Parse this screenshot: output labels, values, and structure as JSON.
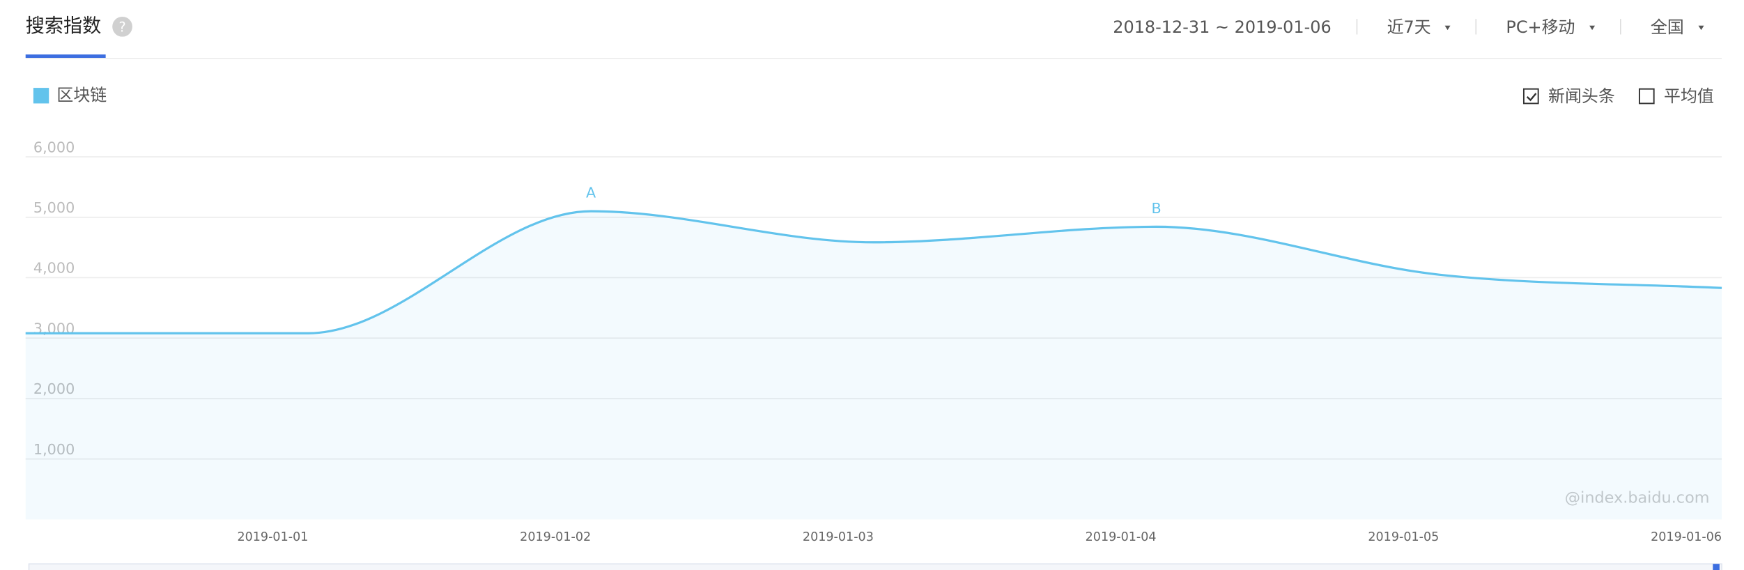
{
  "header": {
    "title": "搜索指数",
    "help": "?"
  },
  "filters": {
    "date_range": "2018-12-31 ~ 2019-01-06",
    "period": "近7天",
    "device": "PC+移动",
    "region": "全国"
  },
  "options": [
    {
      "label": "新闻头条",
      "checked": true
    },
    {
      "label": "平均值",
      "checked": false
    }
  ],
  "watermark": "@index.baidu.com",
  "chart_data": {
    "type": "area",
    "categories": [
      null,
      "2019-01-01",
      "2019-01-02",
      "2019-01-03",
      "2019-01-04",
      "2019-01-05",
      "2019-01-06"
    ],
    "series": [
      {
        "name": "区块链",
        "color": "#62c3ec",
        "values": [
          3080,
          3080,
          5100,
          4585,
          4843,
          4050,
          3830
        ]
      }
    ],
    "ylim": [
      0,
      6000
    ],
    "yticks": [
      {
        "value": 1000,
        "label": "1,000"
      },
      {
        "value": 2000,
        "label": "2,000"
      },
      {
        "value": 3000,
        "label": "3,000"
      },
      {
        "value": 4000,
        "label": "4,000"
      },
      {
        "value": 5000,
        "label": "5,000"
      },
      {
        "value": 6000,
        "label": "6,000"
      }
    ],
    "grid": true,
    "annotations": [
      {
        "label": "A",
        "x": "2019-01-02"
      },
      {
        "label": "B",
        "x": "2019-01-04"
      }
    ]
  }
}
